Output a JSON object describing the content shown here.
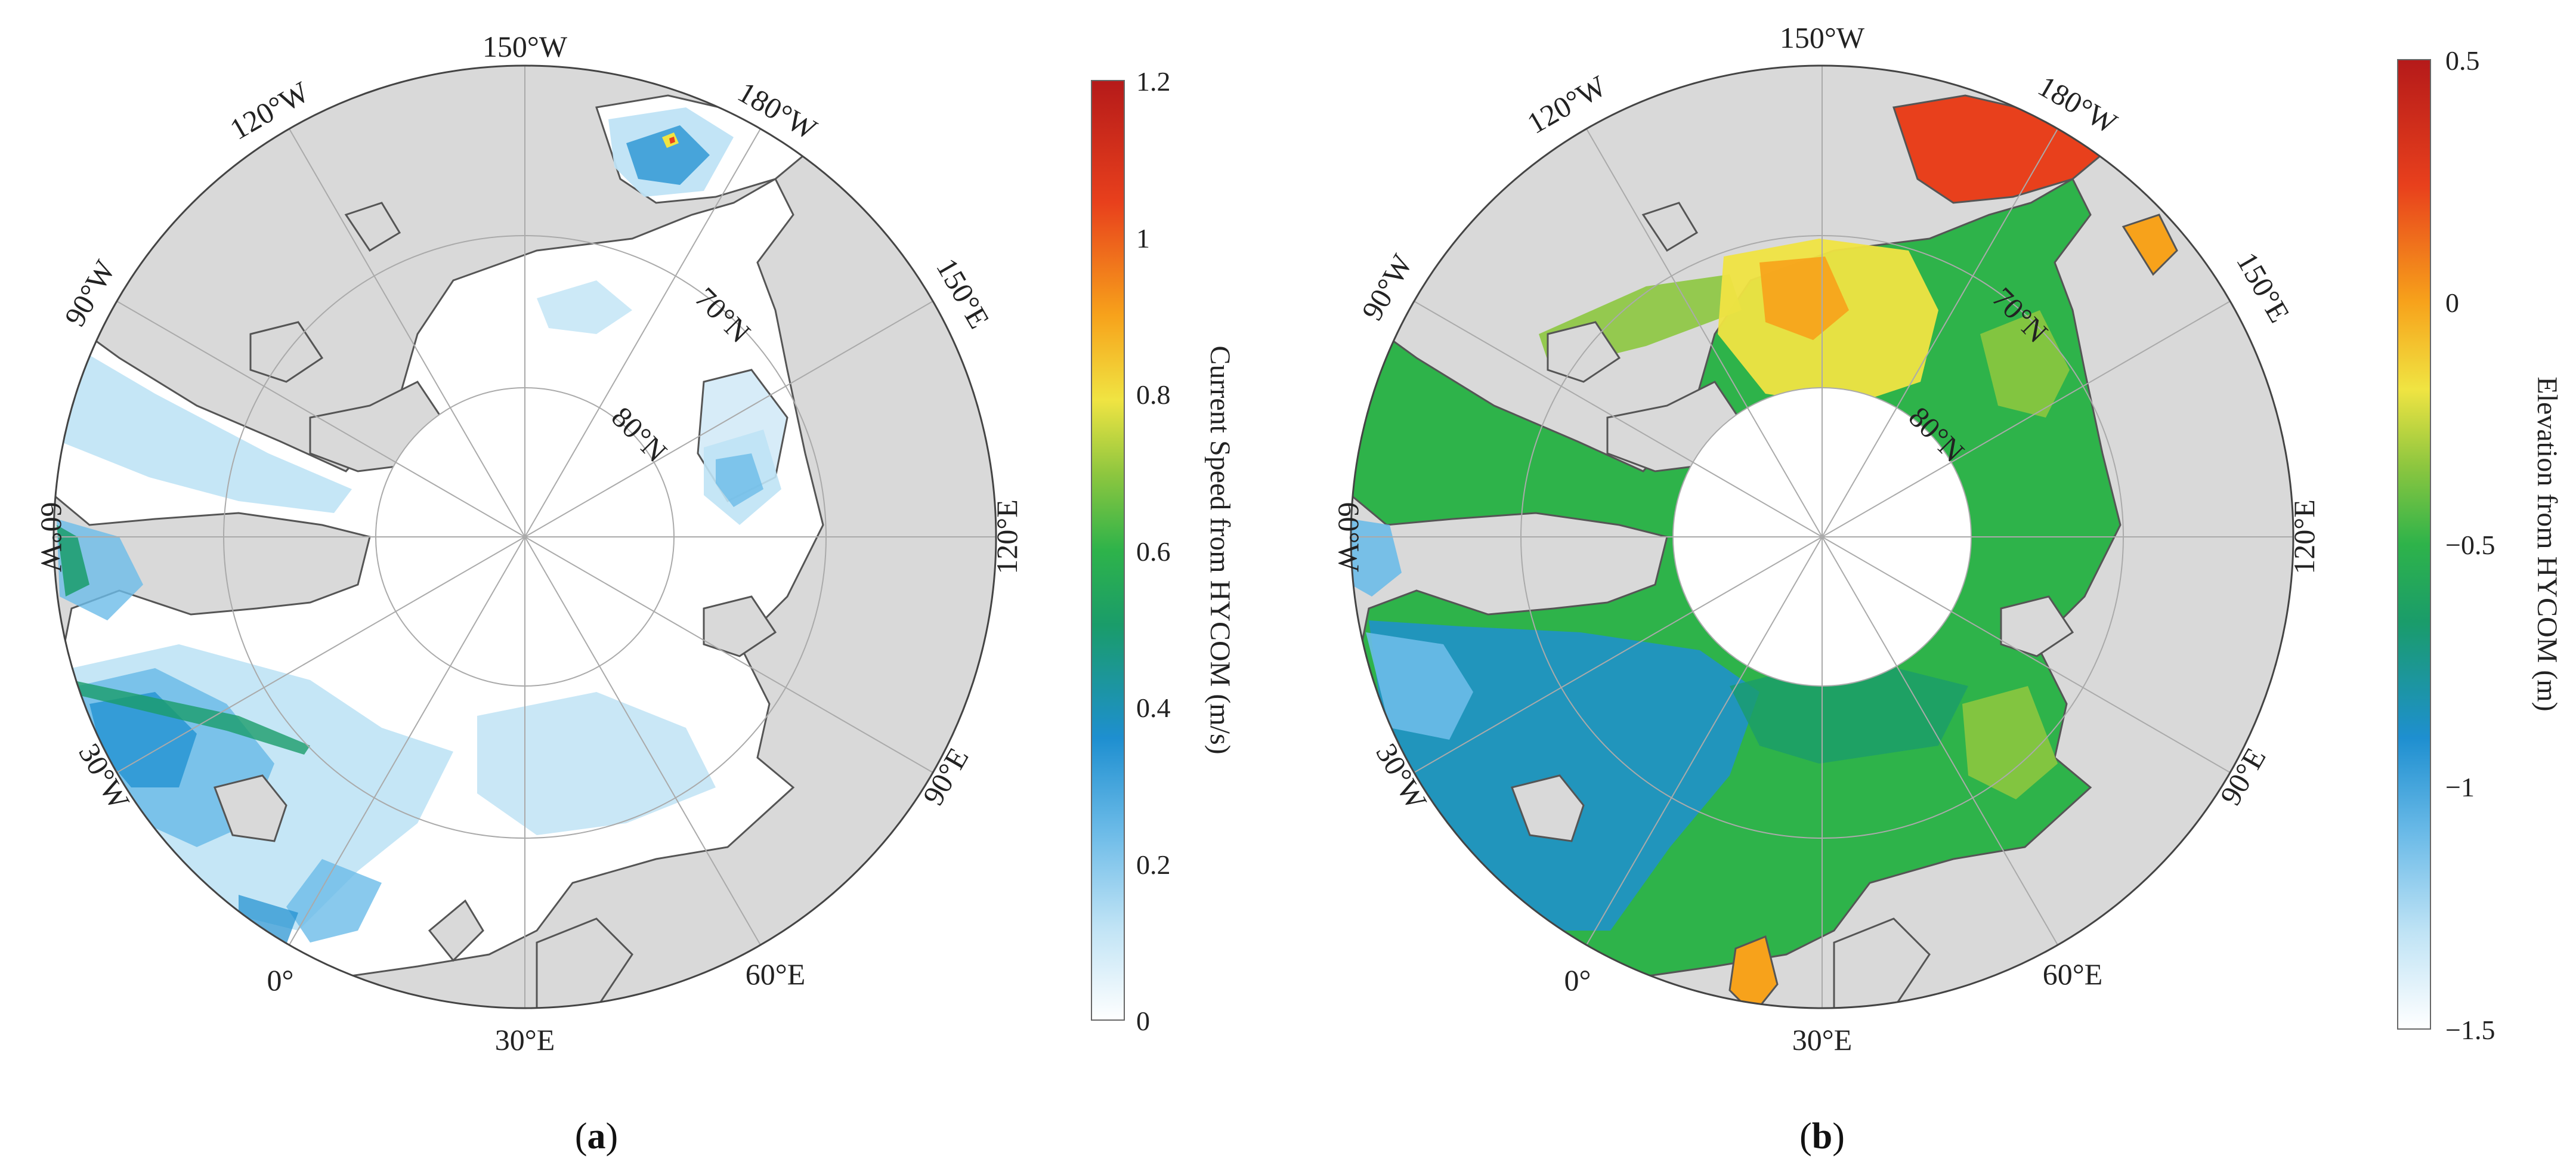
{
  "panels": [
    {
      "id": "a",
      "caption_letter": "a",
      "lon_labels": {
        "west": [
          "150°W",
          "120°W",
          "90°W",
          "60°W",
          "30°W"
        ],
        "zero": "0°",
        "east": [
          "180°W",
          "150°E",
          "120°E",
          "90°E",
          "60°E",
          "30°E"
        ]
      },
      "lat_labels": [
        "70°N",
        "80°N"
      ],
      "colorbar": {
        "label": "Current Speed from HYCOM (m/s)",
        "ticks": [
          "1.2",
          "1",
          "0.8",
          "0.6",
          "0.4",
          "0.2",
          "0"
        ],
        "min": 0,
        "max": 1.2,
        "colormap": [
          "#ffffff",
          "#bfe3f5",
          "#6cbbe8",
          "#1e8fd0",
          "#1a9c6a",
          "#2eb34a",
          "#8cc63f",
          "#f0e442",
          "#f7a21b",
          "#e8401c",
          "#b51a1a"
        ]
      }
    },
    {
      "id": "b",
      "caption_letter": "b",
      "lon_labels": {
        "west": [
          "150°W",
          "120°W",
          "90°W",
          "60°W",
          "30°W"
        ],
        "zero": "0°",
        "east": [
          "180°W",
          "150°E",
          "120°E",
          "90°E",
          "60°E",
          "30°E"
        ]
      },
      "lat_labels": [
        "70°N",
        "80°N"
      ],
      "colorbar": {
        "label": "Elevation from HYCOM (m)",
        "ticks": [
          "0.5",
          "0",
          "−0.5",
          "−1",
          "−1.5"
        ],
        "min": -1.5,
        "max": 0.5,
        "colormap": [
          "#ffffff",
          "#bfe3f5",
          "#6cbbe8",
          "#1e8fd0",
          "#1a9c6a",
          "#2eb34a",
          "#8cc63f",
          "#f0e442",
          "#f7a21b",
          "#e8401c",
          "#b51a1a"
        ]
      }
    }
  ],
  "colors": {
    "land": "#d9d9d9",
    "coast": "#555555",
    "ocean_white": "#ffffff",
    "graticule": "#aaaaaa"
  }
}
